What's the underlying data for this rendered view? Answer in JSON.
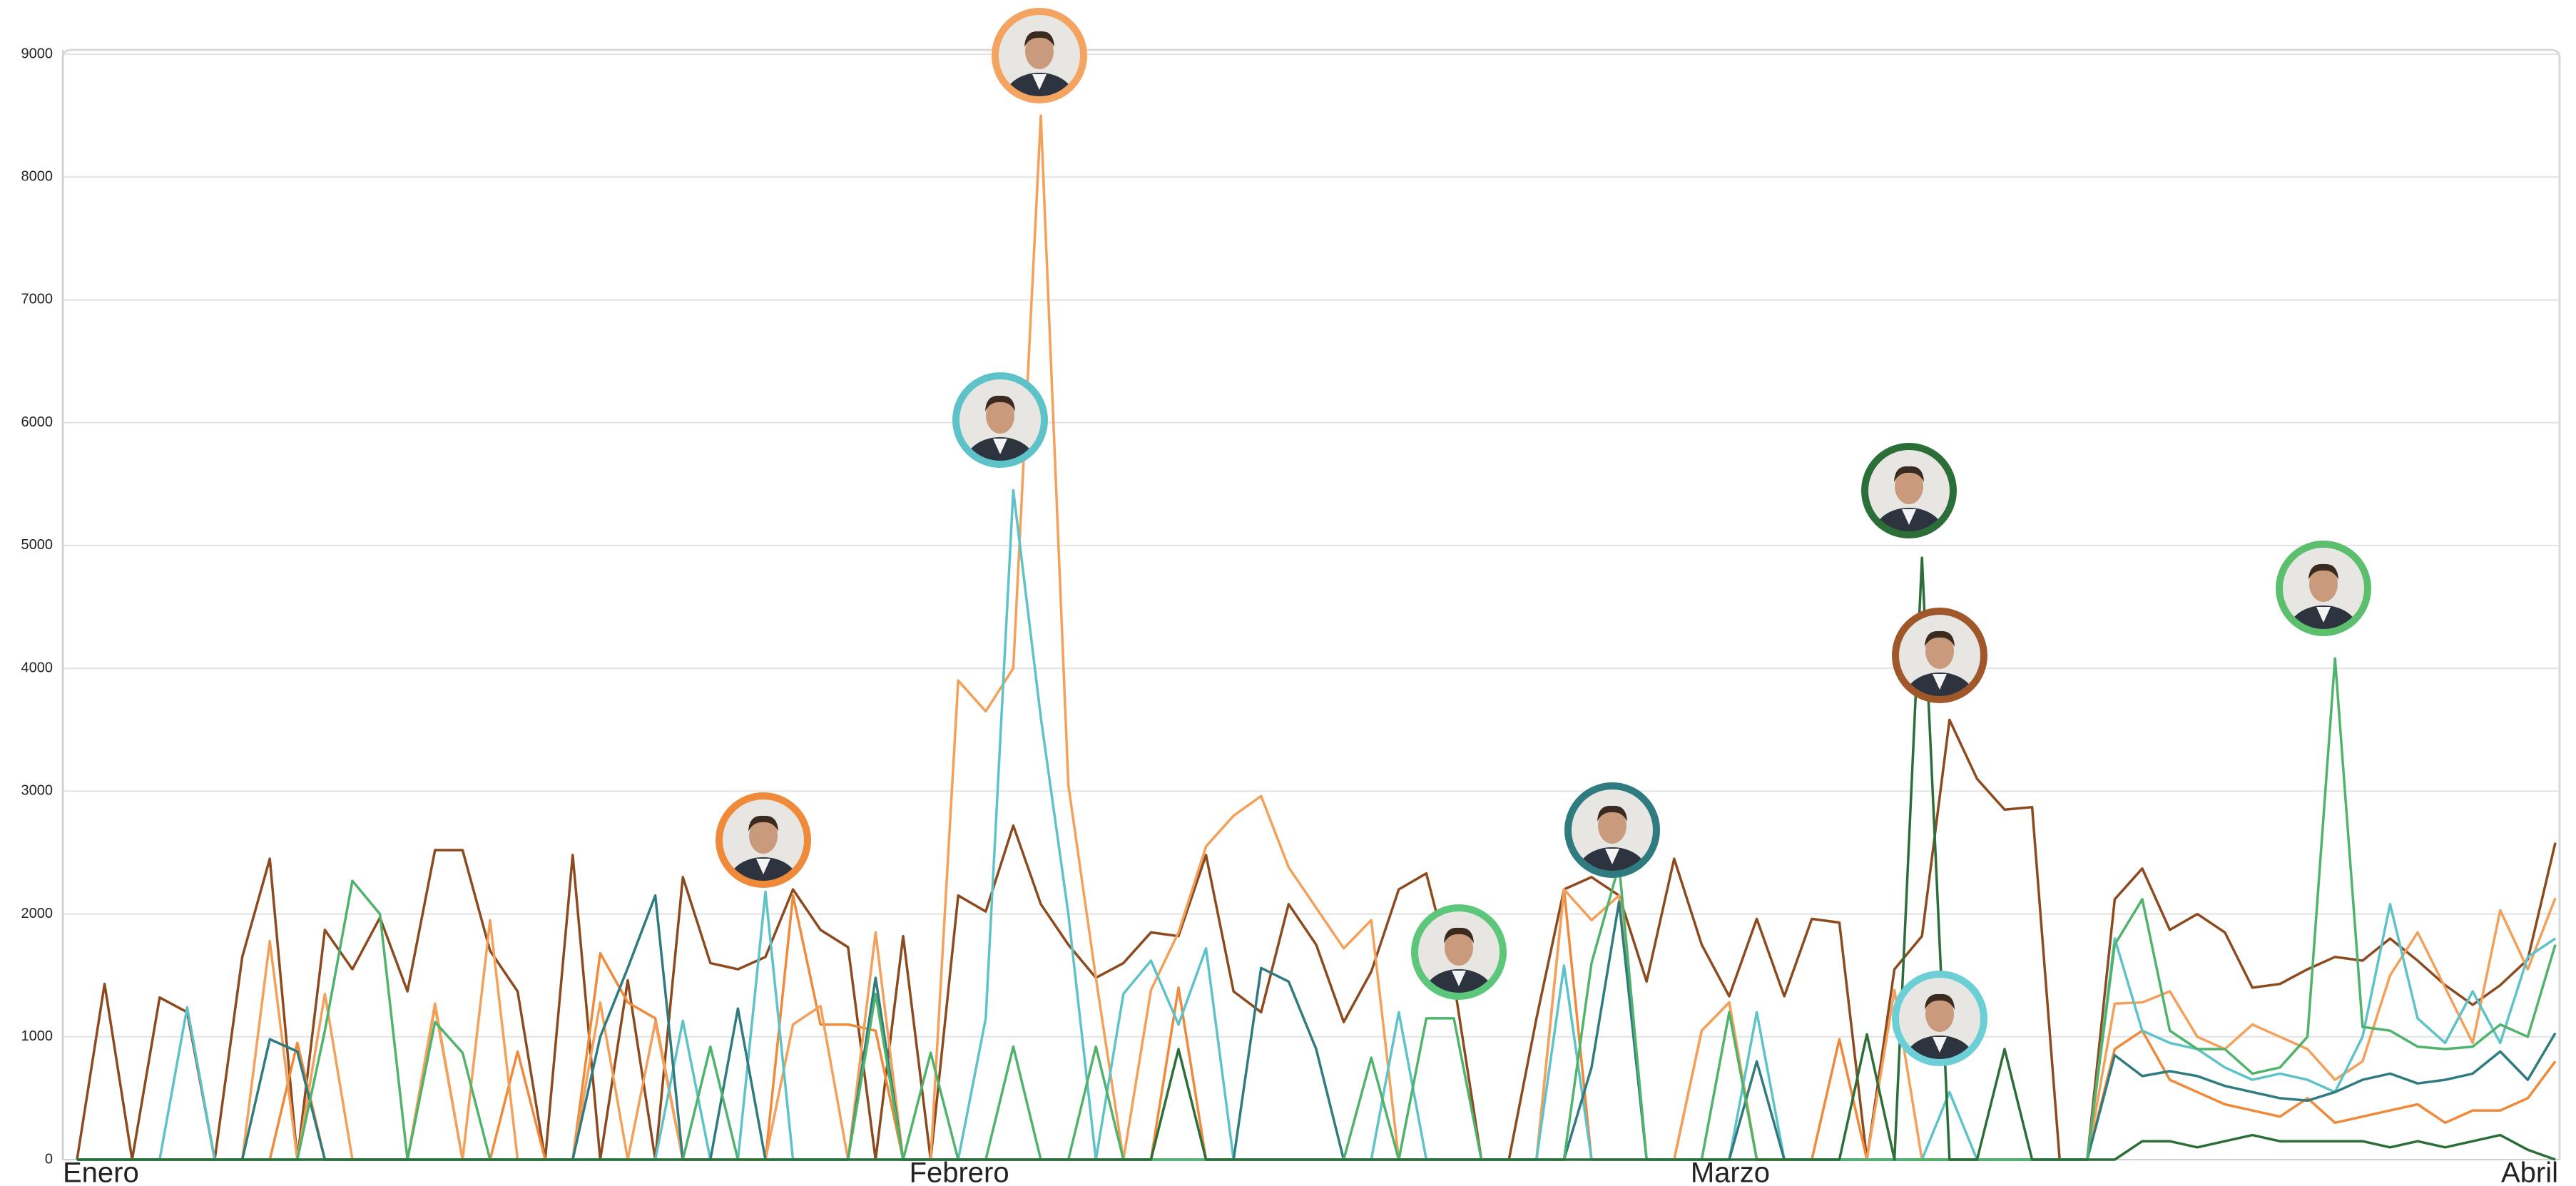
{
  "chart_data": {
    "type": "line",
    "categories": [
      "Enero",
      null,
      null,
      null,
      null,
      null,
      null,
      null,
      null,
      null,
      null,
      null,
      null,
      null,
      null,
      null,
      null,
      null,
      null,
      null,
      null,
      null,
      null,
      null,
      null,
      null,
      null,
      null,
      null,
      null,
      null,
      "Febrero",
      null,
      null,
      null,
      null,
      null,
      null,
      null,
      null,
      null,
      null,
      null,
      null,
      null,
      null,
      null,
      null,
      null,
      null,
      null,
      null,
      null,
      null,
      null,
      null,
      null,
      null,
      null,
      "Marzo",
      null,
      null,
      null,
      null,
      null,
      null,
      null,
      null,
      null,
      null,
      null,
      null,
      null,
      null,
      null,
      null,
      null,
      null,
      null,
      null,
      null,
      null,
      null,
      null,
      null,
      null,
      null,
      null,
      null,
      null,
      "Abril"
    ],
    "ylim": [
      0,
      9000
    ],
    "yticks": [
      0,
      1000,
      2000,
      3000,
      4000,
      5000,
      6000,
      7000,
      8000,
      9000
    ],
    "grid": true,
    "series": [
      {
        "color": "#8c4a1e",
        "values": [
          0,
          1430,
          0,
          1320,
          1200,
          0,
          1650,
          2450,
          0,
          1870,
          1550,
          1970,
          1370,
          2520,
          2520,
          1700,
          1370,
          0,
          2480,
          0,
          1460,
          0,
          2300,
          1600,
          1550,
          1650,
          2200,
          1870,
          1730,
          0,
          1820,
          0,
          2150,
          2020,
          2720,
          2080,
          1750,
          1480,
          1600,
          1850,
          1820,
          2480,
          1370,
          1200,
          2080,
          1750,
          1120,
          1530,
          2200,
          2330,
          1450,
          0,
          0,
          1150,
          2200,
          2300,
          2150,
          1450,
          2450,
          1750,
          1330,
          1960,
          1330,
          1960,
          1930,
          0,
          1550,
          1820,
          3580,
          3100,
          2850,
          2870,
          0,
          0,
          2120,
          2370,
          1870,
          2000,
          1850,
          1400,
          1430,
          1550,
          1650,
          1620,
          1800,
          1620,
          1420,
          1260,
          1420,
          1630,
          2580
        ]
      },
      {
        "color": "#ee8a3a",
        "values": [
          0,
          0,
          0,
          0,
          0,
          0,
          0,
          0,
          950,
          0,
          0,
          0,
          0,
          1250,
          0,
          0,
          880,
          0,
          0,
          1680,
          1280,
          1150,
          0,
          0,
          0,
          0,
          2150,
          1100,
          1100,
          1050,
          0,
          0,
          0,
          0,
          0,
          0,
          0,
          0,
          0,
          0,
          1400,
          0,
          0,
          0,
          0,
          0,
          0,
          0,
          0,
          0,
          0,
          0,
          0,
          0,
          2200,
          0,
          0,
          0,
          0,
          1050,
          1280,
          0,
          0,
          0,
          980,
          0,
          0,
          0,
          0,
          0,
          0,
          0,
          0,
          0,
          900,
          1050,
          650,
          550,
          450,
          400,
          350,
          500,
          300,
          350,
          400,
          450,
          300,
          400,
          400,
          500,
          800
        ]
      },
      {
        "color": "#f3a05a",
        "values": [
          0,
          0,
          0,
          0,
          0,
          0,
          0,
          1780,
          0,
          1350,
          0,
          0,
          0,
          1270,
          0,
          1950,
          0,
          0,
          0,
          1280,
          0,
          1120,
          0,
          0,
          0,
          0,
          1100,
          1250,
          0,
          1850,
          0,
          0,
          3900,
          3650,
          4000,
          8500,
          3050,
          1480,
          0,
          1380,
          1850,
          2550,
          2800,
          2960,
          2380,
          2050,
          1720,
          1950,
          0,
          0,
          0,
          0,
          0,
          0,
          2200,
          1950,
          2150,
          0,
          0,
          1050,
          1280,
          0,
          0,
          0,
          0,
          0,
          1380,
          0,
          0,
          0,
          0,
          0,
          0,
          0,
          1270,
          1280,
          1370,
          1000,
          900,
          1100,
          1000,
          900,
          650,
          800,
          1500,
          1850,
          1400,
          950,
          2030,
          1550,
          2130
        ]
      },
      {
        "color": "#5ec3c9",
        "values": [
          0,
          0,
          0,
          0,
          1240,
          0,
          0,
          0,
          0,
          0,
          0,
          0,
          0,
          0,
          0,
          0,
          0,
          0,
          0,
          0,
          0,
          0,
          1130,
          0,
          0,
          2180,
          0,
          0,
          0,
          0,
          0,
          0,
          0,
          1150,
          5450,
          3600,
          2000,
          0,
          1350,
          1620,
          1100,
          1720,
          0,
          0,
          0,
          0,
          0,
          0,
          1200,
          0,
          0,
          0,
          0,
          0,
          1580,
          0,
          0,
          0,
          0,
          0,
          0,
          1200,
          0,
          0,
          0,
          0,
          0,
          0,
          550,
          0,
          0,
          0,
          0,
          0,
          1800,
          1050,
          950,
          900,
          750,
          650,
          700,
          650,
          550,
          1000,
          2080,
          1150,
          950,
          1370,
          950,
          1650,
          1800
        ]
      },
      {
        "color": "#2f7b80",
        "values": [
          0,
          0,
          0,
          0,
          0,
          0,
          0,
          980,
          880,
          0,
          0,
          0,
          0,
          0,
          0,
          0,
          0,
          0,
          0,
          1000,
          1560,
          2150,
          0,
          0,
          1230,
          0,
          0,
          0,
          0,
          1480,
          0,
          0,
          0,
          0,
          0,
          0,
          0,
          0,
          0,
          0,
          0,
          0,
          0,
          1560,
          1450,
          900,
          0,
          0,
          0,
          0,
          0,
          0,
          0,
          0,
          0,
          750,
          2100,
          0,
          0,
          0,
          0,
          800,
          0,
          0,
          0,
          0,
          0,
          0,
          0,
          0,
          0,
          0,
          0,
          0,
          850,
          680,
          720,
          680,
          600,
          550,
          500,
          480,
          550,
          650,
          700,
          620,
          650,
          700,
          880,
          650,
          1030
        ]
      },
      {
        "color": "#4fb36c",
        "values": [
          0,
          0,
          0,
          0,
          0,
          0,
          0,
          0,
          0,
          1050,
          2270,
          2000,
          0,
          1120,
          870,
          0,
          0,
          0,
          0,
          0,
          0,
          0,
          0,
          920,
          0,
          0,
          0,
          0,
          0,
          1350,
          0,
          870,
          0,
          0,
          920,
          0,
          0,
          920,
          0,
          0,
          0,
          0,
          0,
          0,
          0,
          0,
          0,
          830,
          0,
          1150,
          1150,
          0,
          0,
          0,
          0,
          1600,
          2400,
          0,
          0,
          0,
          1200,
          0,
          0,
          0,
          0,
          0,
          0,
          0,
          0,
          0,
          0,
          0,
          0,
          0,
          1750,
          2120,
          1050,
          900,
          900,
          700,
          750,
          1000,
          4080,
          1080,
          1050,
          920,
          900,
          920,
          1100,
          1000,
          1750
        ]
      },
      {
        "color": "#2b6e38",
        "values": [
          0,
          0,
          0,
          0,
          0,
          0,
          0,
          0,
          0,
          0,
          0,
          0,
          0,
          0,
          0,
          0,
          0,
          0,
          0,
          0,
          0,
          0,
          0,
          0,
          0,
          0,
          0,
          0,
          0,
          0,
          0,
          0,
          0,
          0,
          0,
          0,
          0,
          0,
          0,
          0,
          900,
          0,
          0,
          0,
          0,
          0,
          0,
          0,
          0,
          0,
          0,
          0,
          0,
          0,
          0,
          0,
          0,
          0,
          0,
          0,
          0,
          0,
          0,
          0,
          0,
          1020,
          0,
          4900,
          0,
          0,
          900,
          0,
          0,
          0,
          0,
          150,
          150,
          100,
          150,
          200,
          150,
          150,
          150,
          150,
          100,
          150,
          100,
          150,
          200,
          80,
          0
        ]
      }
    ]
  }
}
